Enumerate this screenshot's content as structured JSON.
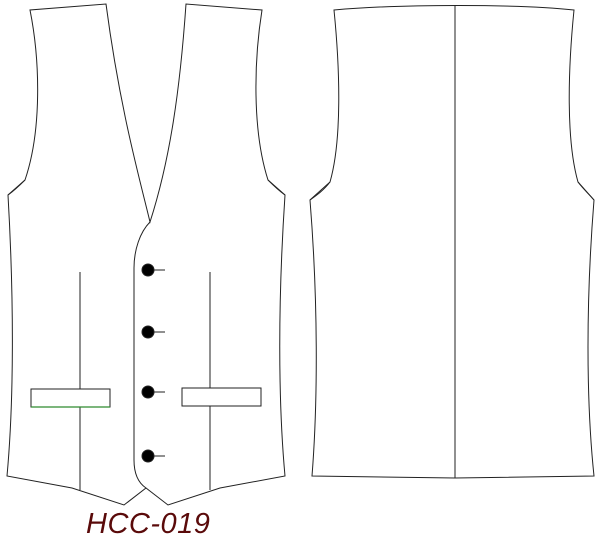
{
  "code": "HCC-019",
  "colors": {
    "background": "#ffffff",
    "outline": "#222222",
    "pocket_accent": "#2e8b2e",
    "button": "#000000",
    "code_text": "#5a0a0a"
  },
  "views": [
    "front",
    "back"
  ],
  "front": {
    "button_count": 4,
    "welt_pocket_count": 2,
    "dart_count": 2
  },
  "back": {
    "center_seam": true
  }
}
